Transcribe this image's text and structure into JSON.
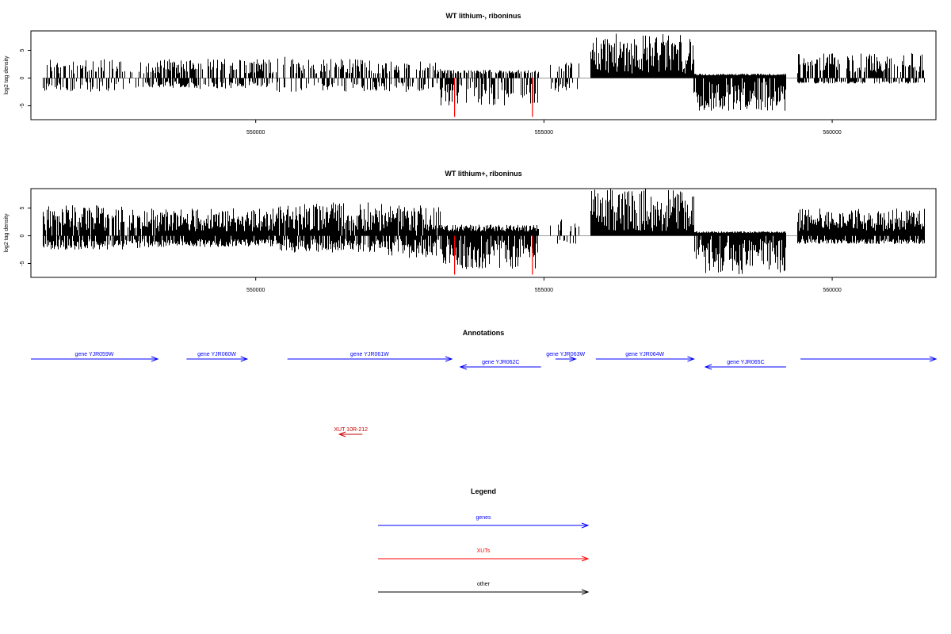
{
  "chart_data": [
    {
      "type": "bar",
      "title": "WT lithium-, riboninus",
      "xlabel": "",
      "ylabel": "log2 tag density",
      "xlim": [
        546100,
        561800
      ],
      "ylim": [
        -7.5,
        8.5
      ],
      "x_ticks": [
        550000,
        555000,
        560000
      ],
      "x_tick_labels": [
        "550000",
        "555000",
        "560000"
      ],
      "y_ticks": [
        -5,
        0,
        5
      ],
      "y_tick_labels": [
        "-5",
        "0",
        "5"
      ],
      "highlight_color": "#ff0000",
      "highlight_bars": [
        {
          "x": 553450,
          "value": -7.0
        },
        {
          "x": 554800,
          "value": -7.0
        }
      ],
      "density_profile": [
        {
          "from": 546300,
          "to": 547700,
          "pos_max": 3.5,
          "neg_max": 2.5,
          "density": 0.45
        },
        {
          "from": 547700,
          "to": 548300,
          "pos_max": 3.0,
          "neg_max": 2.0,
          "density": 0.35
        },
        {
          "from": 548300,
          "to": 549000,
          "pos_max": 3.5,
          "neg_max": 1.8,
          "density": 0.8
        },
        {
          "from": 549000,
          "to": 550300,
          "pos_max": 3.5,
          "neg_max": 2.0,
          "density": 0.55
        },
        {
          "from": 550300,
          "to": 550700,
          "pos_max": 4.0,
          "neg_max": 2.5,
          "density": 0.3
        },
        {
          "from": 550700,
          "to": 552200,
          "pos_max": 3.5,
          "neg_max": 2.5,
          "density": 0.5
        },
        {
          "from": 552200,
          "to": 553200,
          "pos_max": 3.0,
          "neg_max": 2.5,
          "density": 0.5
        },
        {
          "from": 553200,
          "to": 554900,
          "pos_max": 1.5,
          "neg_max": 5.0,
          "density": 0.6
        },
        {
          "from": 555100,
          "to": 555600,
          "pos_max": 3.0,
          "neg_max": 2.5,
          "density": 0.4
        },
        {
          "from": 555800,
          "to": 557600,
          "pos_max": 8.0,
          "neg_max": 0.5,
          "density": 1.0
        },
        {
          "from": 557600,
          "to": 559200,
          "pos_max": 0.5,
          "neg_max": 6.0,
          "density": 1.0
        },
        {
          "from": 559400,
          "to": 560600,
          "pos_max": 4.5,
          "neg_max": 1.0,
          "density": 0.6
        },
        {
          "from": 560600,
          "to": 561600,
          "pos_max": 4.5,
          "neg_max": 1.0,
          "density": 0.6
        }
      ]
    },
    {
      "type": "bar",
      "title": "WT lithium+, riboninus",
      "xlabel": "",
      "ylabel": "log2 tag density",
      "xlim": [
        546100,
        561800
      ],
      "ylim": [
        -7.5,
        8.5
      ],
      "x_ticks": [
        550000,
        555000,
        560000
      ],
      "x_tick_labels": [
        "550000",
        "555000",
        "560000"
      ],
      "y_ticks": [
        -5,
        0,
        5
      ],
      "y_tick_labels": [
        "-5",
        "0",
        "5"
      ],
      "highlight_color": "#ff0000",
      "highlight_bars": [
        {
          "x": 553450,
          "value": -7.0
        },
        {
          "x": 554800,
          "value": -7.0
        }
      ],
      "density_profile": [
        {
          "from": 546300,
          "to": 547700,
          "pos_max": 5.5,
          "neg_max": 2.5,
          "density": 0.9
        },
        {
          "from": 547700,
          "to": 548300,
          "pos_max": 5.0,
          "neg_max": 2.5,
          "density": 0.8
        },
        {
          "from": 548300,
          "to": 550300,
          "pos_max": 5.0,
          "neg_max": 2.0,
          "density": 1.0
        },
        {
          "from": 550300,
          "to": 552200,
          "pos_max": 6.0,
          "neg_max": 3.0,
          "density": 0.95
        },
        {
          "from": 552200,
          "to": 553200,
          "pos_max": 5.5,
          "neg_max": 4.0,
          "density": 0.95
        },
        {
          "from": 553200,
          "to": 554900,
          "pos_max": 2.0,
          "neg_max": 6.0,
          "density": 1.0
        },
        {
          "from": 555100,
          "to": 555600,
          "pos_max": 3.0,
          "neg_max": 1.5,
          "density": 0.3
        },
        {
          "from": 555800,
          "to": 557600,
          "pos_max": 8.5,
          "neg_max": 0.5,
          "density": 1.0
        },
        {
          "from": 557600,
          "to": 559200,
          "pos_max": 0.5,
          "neg_max": 7.0,
          "density": 1.0
        },
        {
          "from": 559400,
          "to": 561600,
          "pos_max": 5.0,
          "neg_max": 1.5,
          "density": 1.0
        }
      ]
    }
  ],
  "annotations": {
    "title": "Annotations",
    "genes_color": "#0000ff",
    "xuts_color": "#cc0000",
    "features": [
      {
        "label": "gene YJR059W",
        "start": 546100,
        "end": 548300,
        "strand": "+",
        "lane": 0,
        "kind": "gene"
      },
      {
        "label": "gene YJR060W",
        "start": 548800,
        "end": 549850,
        "strand": "+",
        "lane": 0,
        "kind": "gene"
      },
      {
        "label": "gene YJR061W",
        "start": 550550,
        "end": 553400,
        "strand": "+",
        "lane": 0,
        "kind": "gene"
      },
      {
        "label": "gene YJR062C",
        "start": 553550,
        "end": 554950,
        "strand": "-",
        "lane": 1,
        "kind": "gene"
      },
      {
        "label": "gene YJR063W",
        "start": 555200,
        "end": 555550,
        "strand": "+",
        "lane": 0,
        "kind": "gene"
      },
      {
        "label": "gene YJR064W",
        "start": 555900,
        "end": 557600,
        "strand": "+",
        "lane": 0,
        "kind": "gene"
      },
      {
        "label": "gene YJR065C",
        "start": 557800,
        "end": 559200,
        "strand": "-",
        "lane": 1,
        "kind": "gene"
      },
      {
        "label": "",
        "start": 559450,
        "end": 561800,
        "strand": "+",
        "lane": 0,
        "kind": "gene"
      },
      {
        "label": "XUT 10R-212",
        "start": 551450,
        "end": 551850,
        "strand": "-",
        "lane": 2,
        "kind": "xut"
      }
    ]
  },
  "legend": {
    "title": "Legend",
    "items": [
      {
        "label": "genes",
        "color": "#0000ff"
      },
      {
        "label": "XUTs",
        "color": "#ff0000"
      },
      {
        "label": "other",
        "color": "#000000"
      }
    ]
  }
}
